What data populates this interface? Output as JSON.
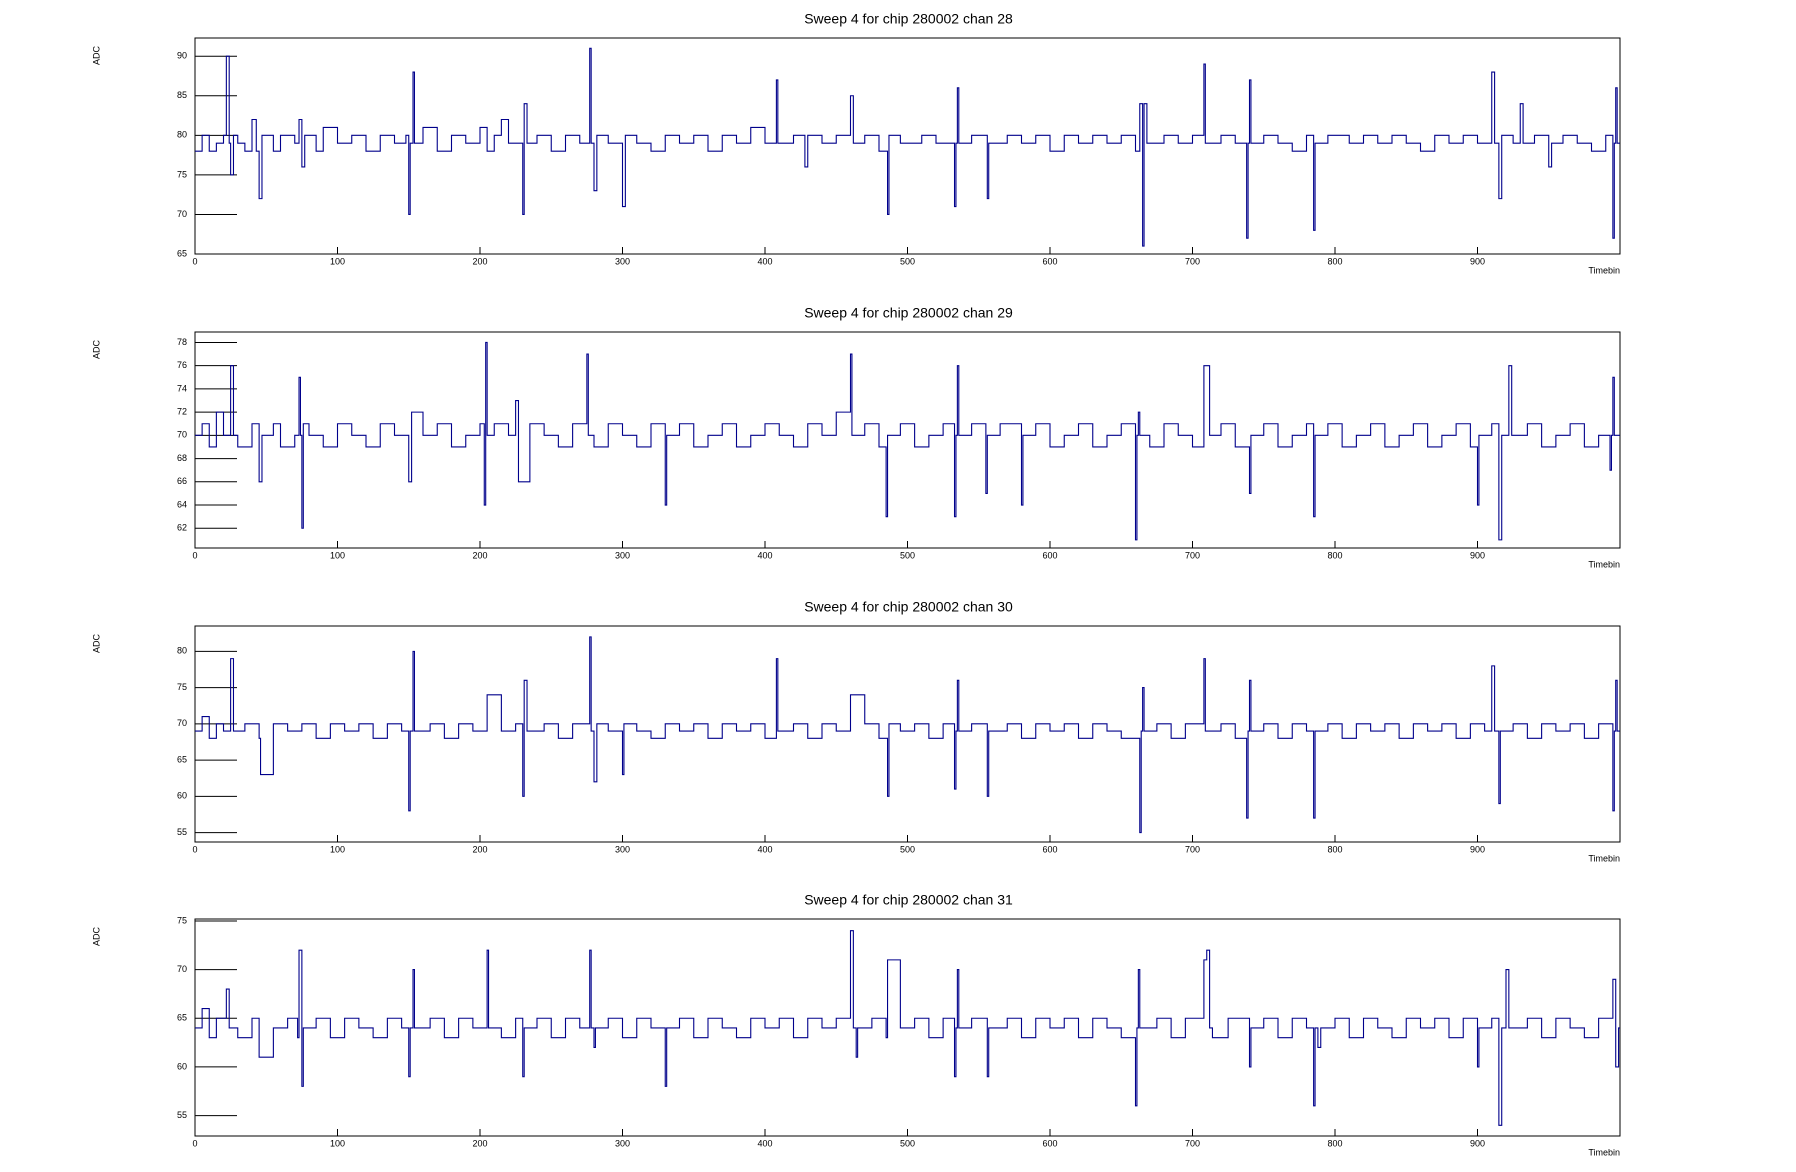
{
  "chart_data": [
    {
      "type": "line",
      "drawstyle": "steps-post",
      "title": "Sweep 4 for chip 280002 chan 28",
      "xlabel": "Timebin",
      "ylabel": "ADC",
      "color": "#00008b",
      "xlim": [
        0,
        1000
      ],
      "xticks": [
        0,
        100,
        200,
        300,
        400,
        500,
        600,
        700,
        800,
        900
      ],
      "ylim": [
        65,
        92.3
      ],
      "yticks": [
        65,
        70,
        75,
        80,
        85,
        90
      ],
      "x": [
        0,
        5,
        10,
        15,
        20,
        22,
        24,
        25,
        27,
        30,
        35,
        40,
        43,
        45,
        47,
        55,
        60,
        70,
        73,
        75,
        77,
        85,
        90,
        100,
        110,
        120,
        130,
        140,
        148,
        150,
        151,
        153,
        154,
        160,
        170,
        180,
        190,
        200,
        205,
        210,
        215,
        220,
        230,
        231,
        233,
        240,
        250,
        260,
        270,
        277,
        278,
        280,
        282,
        290,
        300,
        302,
        310,
        320,
        330,
        340,
        350,
        360,
        370,
        380,
        390,
        400,
        408,
        409,
        420,
        428,
        430,
        440,
        450,
        460,
        462,
        470,
        480,
        486,
        487,
        495,
        510,
        520,
        533,
        534,
        535,
        536,
        545,
        556,
        557,
        570,
        580,
        590,
        600,
        610,
        620,
        630,
        640,
        650,
        660,
        663,
        665,
        666,
        668,
        680,
        690,
        700,
        708,
        709,
        720,
        730,
        738,
        739,
        740,
        741,
        750,
        760,
        770,
        780,
        785,
        786,
        795,
        810,
        820,
        830,
        840,
        850,
        860,
        870,
        880,
        890,
        900,
        910,
        912,
        915,
        917,
        925,
        930,
        932,
        940,
        950,
        952,
        960,
        970,
        980,
        990,
        995,
        996,
        997,
        998
      ],
      "values": [
        78,
        80,
        78,
        79,
        80,
        90,
        79,
        75,
        80,
        79,
        78,
        82,
        78,
        72,
        80,
        78,
        80,
        79,
        82,
        76,
        80,
        78,
        81,
        79,
        80,
        78,
        80,
        79,
        80,
        70,
        79,
        88,
        79,
        81,
        78,
        80,
        79,
        81,
        78,
        80,
        82,
        79,
        70,
        84,
        79,
        80,
        78,
        80,
        79,
        91,
        79,
        73,
        80,
        79,
        71,
        80,
        79,
        78,
        80,
        79,
        80,
        78,
        80,
        79,
        81,
        79,
        87,
        79,
        80,
        76,
        80,
        79,
        80,
        85,
        79,
        80,
        78,
        70,
        80,
        79,
        80,
        79,
        71,
        79,
        86,
        79,
        80,
        72,
        79,
        80,
        79,
        80,
        78,
        80,
        79,
        80,
        79,
        80,
        78,
        84,
        66,
        84,
        79,
        80,
        79,
        80,
        89,
        79,
        80,
        79,
        67,
        79,
        87,
        79,
        80,
        79,
        78,
        80,
        68,
        79,
        80,
        79,
        80,
        79,
        80,
        79,
        78,
        80,
        79,
        80,
        79,
        88,
        79,
        72,
        80,
        79,
        84,
        79,
        80,
        76,
        79,
        80,
        79,
        78,
        80,
        67,
        79,
        86,
        79
      ]
    },
    {
      "type": "line",
      "drawstyle": "steps-post",
      "title": "Sweep 4 for chip 280002 chan 29",
      "xlabel": "Timebin",
      "ylabel": "ADC",
      "color": "#00008b",
      "xlim": [
        0,
        1000
      ],
      "xticks": [
        0,
        100,
        200,
        300,
        400,
        500,
        600,
        700,
        800,
        900
      ],
      "ylim": [
        60.3,
        78.9
      ],
      "yticks": [
        62,
        64,
        66,
        68,
        70,
        72,
        74,
        76,
        78
      ],
      "x": [
        0,
        5,
        10,
        15,
        20,
        25,
        27,
        30,
        40,
        45,
        47,
        55,
        60,
        70,
        73,
        74,
        75,
        76,
        80,
        90,
        100,
        110,
        120,
        130,
        140,
        150,
        152,
        160,
        170,
        180,
        190,
        200,
        203,
        204,
        205,
        210,
        220,
        225,
        227,
        235,
        245,
        255,
        265,
        275,
        276,
        280,
        290,
        300,
        310,
        320,
        330,
        331,
        340,
        350,
        360,
        370,
        380,
        390,
        400,
        410,
        420,
        430,
        440,
        450,
        460,
        461,
        470,
        480,
        485,
        486,
        495,
        505,
        515,
        525,
        533,
        534,
        535,
        536,
        545,
        555,
        556,
        565,
        580,
        581,
        590,
        600,
        610,
        620,
        630,
        640,
        650,
        660,
        661,
        662,
        663,
        670,
        680,
        690,
        700,
        708,
        710,
        712,
        720,
        730,
        740,
        741,
        750,
        760,
        770,
        780,
        785,
        786,
        788,
        795,
        805,
        815,
        825,
        835,
        845,
        855,
        865,
        875,
        885,
        895,
        900,
        901,
        910,
        915,
        917,
        922,
        924,
        935,
        945,
        955,
        965,
        975,
        985,
        993,
        994,
        995,
        996
      ],
      "values": [
        70,
        71,
        69,
        72,
        70,
        76,
        70,
        69,
        71,
        66,
        70,
        71,
        69,
        70,
        75,
        70,
        62,
        71,
        70,
        69,
        71,
        70,
        69,
        71,
        70,
        66,
        72,
        70,
        71,
        69,
        70,
        71,
        64,
        78,
        70,
        71,
        70,
        73,
        66,
        71,
        70,
        69,
        71,
        77,
        70,
        69,
        71,
        70,
        69,
        71,
        64,
        70,
        71,
        69,
        70,
        71,
        69,
        70,
        71,
        70,
        69,
        71,
        70,
        72,
        77,
        70,
        71,
        69,
        63,
        70,
        71,
        69,
        70,
        71,
        63,
        70,
        76,
        70,
        71,
        65,
        70,
        71,
        64,
        70,
        71,
        69,
        70,
        71,
        69,
        70,
        71,
        61,
        70,
        72,
        70,
        69,
        71,
        70,
        69,
        76,
        76,
        70,
        71,
        69,
        65,
        70,
        71,
        69,
        70,
        71,
        63,
        70,
        70,
        71,
        69,
        70,
        71,
        69,
        70,
        71,
        69,
        70,
        71,
        69,
        64,
        70,
        71,
        61,
        70,
        76,
        70,
        71,
        69,
        70,
        71,
        69,
        70,
        67,
        70,
        75,
        70
      ]
    },
    {
      "type": "line",
      "drawstyle": "steps-post",
      "title": "Sweep 4 for chip 280002 chan 30",
      "xlabel": "Timebin",
      "ylabel": "ADC",
      "color": "#00008b",
      "xlim": [
        0,
        1000
      ],
      "xticks": [
        0,
        100,
        200,
        300,
        400,
        500,
        600,
        700,
        800,
        900
      ],
      "ylim": [
        53.7,
        83.5
      ],
      "yticks": [
        55,
        60,
        65,
        70,
        75,
        80
      ],
      "x": [
        0,
        5,
        10,
        15,
        20,
        25,
        27,
        35,
        45,
        46,
        55,
        65,
        75,
        85,
        95,
        105,
        115,
        125,
        135,
        145,
        150,
        151,
        153,
        154,
        165,
        175,
        185,
        195,
        205,
        215,
        225,
        230,
        231,
        233,
        245,
        255,
        265,
        277,
        278,
        280,
        282,
        290,
        300,
        301,
        310,
        320,
        330,
        340,
        350,
        360,
        370,
        380,
        390,
        400,
        408,
        409,
        420,
        430,
        440,
        450,
        460,
        470,
        480,
        486,
        487,
        495,
        505,
        515,
        525,
        533,
        534,
        535,
        536,
        545,
        556,
        557,
        570,
        580,
        590,
        600,
        610,
        620,
        630,
        640,
        650,
        663,
        664,
        665,
        666,
        675,
        685,
        695,
        708,
        709,
        720,
        730,
        738,
        739,
        740,
        741,
        750,
        760,
        770,
        780,
        785,
        786,
        795,
        805,
        815,
        825,
        835,
        845,
        855,
        865,
        875,
        885,
        895,
        905,
        910,
        912,
        915,
        916,
        925,
        935,
        945,
        955,
        965,
        975,
        985,
        995,
        996,
        997,
        998
      ],
      "values": [
        69,
        71,
        68,
        70,
        69,
        79,
        69,
        70,
        68,
        63,
        70,
        69,
        70,
        68,
        70,
        69,
        70,
        68,
        70,
        69,
        58,
        69,
        80,
        69,
        70,
        68,
        70,
        69,
        74,
        69,
        70,
        60,
        76,
        69,
        70,
        68,
        70,
        82,
        69,
        62,
        70,
        69,
        63,
        70,
        69,
        68,
        70,
        69,
        70,
        68,
        70,
        69,
        70,
        68,
        79,
        69,
        70,
        68,
        70,
        69,
        74,
        70,
        68,
        60,
        70,
        69,
        70,
        68,
        70,
        61,
        69,
        76,
        69,
        70,
        60,
        69,
        70,
        68,
        70,
        69,
        70,
        68,
        70,
        69,
        68,
        55,
        69,
        75,
        69,
        70,
        68,
        70,
        79,
        69,
        70,
        68,
        57,
        69,
        76,
        69,
        70,
        68,
        70,
        69,
        57,
        69,
        70,
        68,
        70,
        69,
        70,
        68,
        70,
        69,
        70,
        68,
        70,
        69,
        78,
        69,
        59,
        69,
        70,
        68,
        70,
        69,
        70,
        68,
        70,
        58,
        69,
        76,
        69
      ]
    },
    {
      "type": "line",
      "drawstyle": "steps-post",
      "title": "Sweep 4 for chip 280002 chan 31",
      "xlabel": "Timebin",
      "ylabel": "ADC",
      "color": "#00008b",
      "xlim": [
        0,
        1000
      ],
      "xticks": [
        0,
        100,
        200,
        300,
        400,
        500,
        600,
        700,
        800,
        900
      ],
      "ylim": [
        52.9,
        75.2
      ],
      "yticks": [
        55,
        60,
        65,
        70,
        75
      ],
      "x": [
        0,
        5,
        10,
        15,
        22,
        24,
        30,
        40,
        45,
        55,
        65,
        72,
        73,
        75,
        76,
        85,
        95,
        105,
        115,
        125,
        135,
        145,
        150,
        151,
        153,
        154,
        165,
        175,
        185,
        195,
        205,
        206,
        215,
        225,
        230,
        231,
        240,
        250,
        260,
        270,
        277,
        278,
        280,
        281,
        290,
        300,
        310,
        320,
        330,
        331,
        340,
        350,
        360,
        370,
        380,
        390,
        400,
        410,
        420,
        430,
        440,
        450,
        460,
        462,
        464,
        465,
        475,
        485,
        486,
        495,
        505,
        515,
        525,
        533,
        534,
        535,
        536,
        545,
        556,
        557,
        570,
        580,
        590,
        600,
        610,
        620,
        630,
        640,
        650,
        660,
        661,
        662,
        663,
        675,
        685,
        695,
        708,
        710,
        712,
        714,
        725,
        740,
        741,
        750,
        760,
        770,
        780,
        785,
        786,
        788,
        790,
        800,
        810,
        820,
        830,
        840,
        850,
        860,
        870,
        880,
        890,
        900,
        901,
        910,
        915,
        917,
        920,
        922,
        935,
        945,
        955,
        965,
        975,
        985,
        995,
        997,
        999
      ],
      "values": [
        64,
        66,
        63,
        65,
        68,
        64,
        63,
        65,
        61,
        64,
        65,
        63,
        72,
        58,
        64,
        65,
        63,
        65,
        64,
        63,
        65,
        64,
        59,
        64,
        70,
        64,
        65,
        63,
        65,
        64,
        72,
        64,
        63,
        65,
        59,
        64,
        65,
        63,
        65,
        64,
        72,
        64,
        62,
        64,
        65,
        63,
        65,
        64,
        58,
        64,
        65,
        63,
        65,
        64,
        63,
        65,
        64,
        65,
        63,
        65,
        64,
        65,
        74,
        64,
        61,
        64,
        65,
        63,
        71,
        64,
        65,
        63,
        65,
        59,
        64,
        70,
        64,
        65,
        59,
        64,
        65,
        63,
        65,
        64,
        65,
        63,
        65,
        64,
        63,
        56,
        64,
        70,
        64,
        65,
        63,
        65,
        71,
        72,
        64,
        63,
        65,
        60,
        64,
        65,
        63,
        65,
        64,
        56,
        64,
        62,
        64,
        65,
        63,
        65,
        64,
        63,
        65,
        64,
        65,
        63,
        65,
        60,
        64,
        65,
        54,
        64,
        70,
        64,
        65,
        63,
        65,
        64,
        63,
        65,
        69,
        60,
        64
      ]
    }
  ]
}
